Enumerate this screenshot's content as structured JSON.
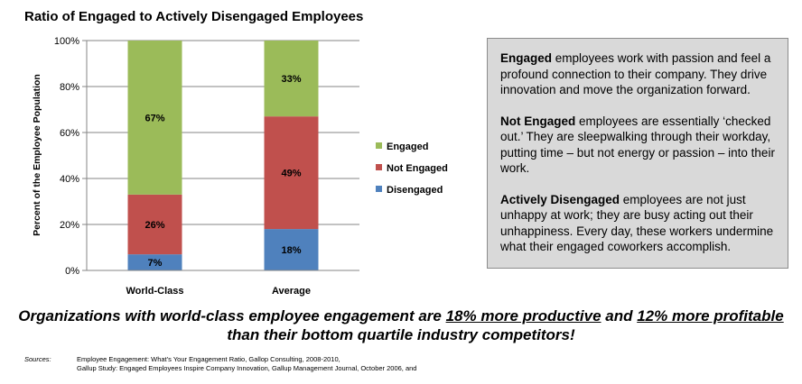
{
  "chart_data": {
    "type": "bar",
    "stacked": true,
    "title": "Ratio of Engaged to Actively Disengaged Employees",
    "ylabel": "Percent of the Employee Population",
    "xlabel": "",
    "ylim": [
      0,
      100
    ],
    "yticks": [
      "0%",
      "20%",
      "40%",
      "60%",
      "80%",
      "100%"
    ],
    "categories": [
      "World-Class",
      "Average"
    ],
    "series": [
      {
        "name": "Disengaged",
        "values": [
          7,
          18
        ],
        "labels": [
          "7%",
          "18%"
        ],
        "color": "#4f81bd"
      },
      {
        "name": "Not Engaged",
        "values": [
          26,
          49
        ],
        "labels": [
          "26%",
          "49%"
        ],
        "color": "#c0504d"
      },
      {
        "name": "Engaged",
        "values": [
          67,
          33
        ],
        "labels": [
          "67%",
          "33%"
        ],
        "color": "#9bbb59"
      }
    ],
    "legend_order": [
      "Engaged",
      "Not Engaged",
      "Disengaged"
    ],
    "legend_position": "right",
    "grid": true
  },
  "info": {
    "engaged_term": "Engaged",
    "engaged_text": " employees work with passion and feel a profound connection to their company.  They drive innovation and move the organization forward.",
    "not_engaged_term": "Not Engaged",
    "not_engaged_text": " employees are essentially ‘checked out.’  They are sleepwalking through their workday, putting time – but not energy or passion – into their work.",
    "actively_term": "Actively Disengaged",
    "actively_text": " employees are not just unhappy at work; they are busy acting out their unhappiness.  Every day, these workers undermine what their engaged coworkers accomplish."
  },
  "headline": {
    "part1": "Organizations with world-class employee engagement are ",
    "productive": "18% more productive",
    "part2": " and ",
    "profitable": "12% more profitable",
    "line2": "than their bottom quartile industry competitors!"
  },
  "sources": {
    "label": "Sources:",
    "line1": "Employee Engagement:  What’s Your Engagement Ratio, Gallop Consulting, 2008-2010,",
    "line2": "Gallup Study:  Engaged Employees Inspire Company Innovation, Gallup Management Journal, October 2006, and"
  }
}
